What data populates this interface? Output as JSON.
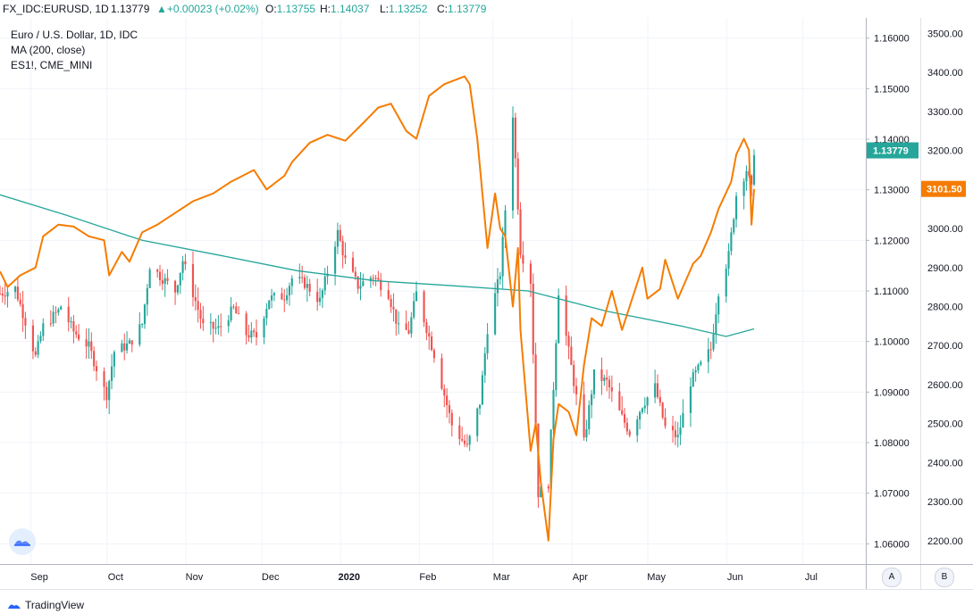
{
  "header": {
    "symbol": "FX_IDC:EURUSD, 1D",
    "last": "1.13779",
    "change": "+0.00023 (+0.02%)",
    "o_label": "O:",
    "o_value": "1.13755",
    "h_label": "H:",
    "h_value": "1.14037",
    "l_label": "L:",
    "l_value": "1.13252",
    "c_label": "C:",
    "c_value": "1.13779"
  },
  "legend": {
    "main": "Euro / U.S. Dollar, 1D, IDC",
    "ma": "MA (200, close)",
    "overlay": "ES1!, CME_MINI"
  },
  "footer": {
    "brand": "TradingView"
  },
  "scale_buttons": {
    "a": "A",
    "b": "B"
  },
  "colors": {
    "up": "#26a69a",
    "down": "#ef5350",
    "ma": "#26a69a",
    "es": "#f57c00",
    "grid": "#f0f3fa",
    "axis_text": "#131722"
  },
  "chart_data": {
    "type": "candlestick",
    "title": "Euro / U.S. Dollar, 1D, IDC",
    "x_tick_labels": [
      "Sep",
      "Oct",
      "Nov",
      "Dec",
      "2020",
      "Feb",
      "Mar",
      "Apr",
      "May",
      "Jun",
      "Jul"
    ],
    "x_range": [
      "2019-08-20",
      "2020-07-26"
    ],
    "right_axis_eurusd": {
      "range": [
        1.056,
        1.164
      ],
      "ticks": [
        "1.16000",
        "1.15000",
        "1.14000",
        "1.13000",
        "1.12000",
        "1.11000",
        "1.10000",
        "1.09000",
        "1.08000",
        "1.07000",
        "1.06000"
      ],
      "last_label": "1.13779"
    },
    "right_axis_es": {
      "range": [
        2140,
        3540
      ],
      "ticks": [
        "3500.00",
        "3400.00",
        "3300.00",
        "3200.00",
        "3100.00",
        "3000.00",
        "2900.00",
        "2800.00",
        "2700.00",
        "2600.00",
        "2500.00",
        "2400.00",
        "2300.00",
        "2200.00"
      ],
      "last_label": "3101.50"
    },
    "grid": true,
    "series": [
      {
        "name": "Euro / U.S. Dollar, 1D, IDC",
        "kind": "candlestick",
        "close_path": [
          [
            "2019-08-20",
            1.1095
          ],
          [
            "2019-08-26",
            1.1105
          ],
          [
            "2019-08-30",
            1.104
          ],
          [
            "2019-09-03",
            1.097
          ],
          [
            "2019-09-06",
            1.103
          ],
          [
            "2019-09-12",
            1.106
          ],
          [
            "2019-09-13",
            1.107
          ],
          [
            "2019-09-18",
            1.102
          ],
          [
            "2019-09-24",
            1.099
          ],
          [
            "2019-09-30",
            1.0905
          ],
          [
            "2019-10-01",
            1.0895
          ],
          [
            "2019-10-04",
            1.098
          ],
          [
            "2019-10-10",
            1.0995
          ],
          [
            "2019-10-15",
            1.1035
          ],
          [
            "2019-10-18",
            1.115
          ],
          [
            "2019-10-22",
            1.113
          ],
          [
            "2019-10-28",
            1.11
          ],
          [
            "2019-10-31",
            1.116
          ],
          [
            "2019-11-05",
            1.108
          ],
          [
            "2019-11-08",
            1.103
          ],
          [
            "2019-11-14",
            1.1025
          ],
          [
            "2019-11-20",
            1.1065
          ],
          [
            "2019-11-25",
            1.1015
          ],
          [
            "2019-11-29",
            1.101
          ],
          [
            "2019-12-04",
            1.1085
          ],
          [
            "2019-12-10",
            1.109
          ],
          [
            "2019-12-13",
            1.1125
          ],
          [
            "2019-12-18",
            1.1115
          ],
          [
            "2019-12-24",
            1.108
          ],
          [
            "2019-12-31",
            1.1215
          ],
          [
            "2020-01-03",
            1.116
          ],
          [
            "2020-01-08",
            1.111
          ],
          [
            "2020-01-14",
            1.113
          ],
          [
            "2020-01-20",
            1.1095
          ],
          [
            "2020-01-24",
            1.1025
          ],
          [
            "2020-01-28",
            1.102
          ],
          [
            "2020-01-31",
            1.1095
          ],
          [
            "2020-02-07",
            1.0975
          ],
          [
            "2020-02-14",
            1.0835
          ],
          [
            "2020-02-20",
            1.079
          ],
          [
            "2020-02-25",
            1.088
          ],
          [
            "2020-02-28",
            1.1025
          ],
          [
            "2020-03-04",
            1.1135
          ],
          [
            "2020-03-09",
            1.145
          ],
          [
            "2020-03-12",
            1.118
          ],
          [
            "2020-03-16",
            1.112
          ],
          [
            "2020-03-19",
            1.07
          ],
          [
            "2020-03-23",
            1.072
          ],
          [
            "2020-03-27",
            1.11
          ],
          [
            "2020-04-01",
            1.095
          ],
          [
            "2020-04-06",
            1.08
          ],
          [
            "2020-04-10",
            1.0935
          ],
          [
            "2020-04-15",
            1.092
          ],
          [
            "2020-04-20",
            1.086
          ],
          [
            "2020-04-24",
            1.082
          ],
          [
            "2020-04-29",
            1.0875
          ],
          [
            "2020-05-04",
            1.091
          ],
          [
            "2020-05-08",
            1.083
          ],
          [
            "2020-05-13",
            1.081
          ],
          [
            "2020-05-18",
            1.092
          ],
          [
            "2020-05-21",
            1.0945
          ],
          [
            "2020-05-26",
            1.0985
          ],
          [
            "2020-05-29",
            1.11
          ],
          [
            "2020-06-02",
            1.117
          ],
          [
            "2020-06-05",
            1.129
          ],
          [
            "2020-06-09",
            1.134
          ],
          [
            "2020-06-11",
            1.13
          ],
          [
            "2020-06-12",
            1.1378
          ]
        ]
      },
      {
        "name": "MA (200, close)",
        "kind": "line",
        "points": [
          [
            "2019-08-20",
            1.129
          ],
          [
            "2019-09-15",
            1.125
          ],
          [
            "2019-10-15",
            1.12
          ],
          [
            "2019-11-15",
            1.117
          ],
          [
            "2019-12-15",
            1.114
          ],
          [
            "2020-01-15",
            1.112
          ],
          [
            "2020-02-15",
            1.111
          ],
          [
            "2020-03-15",
            1.11
          ],
          [
            "2020-04-15",
            1.106
          ],
          [
            "2020-05-15",
            1.103
          ],
          [
            "2020-06-01",
            1.101
          ],
          [
            "2020-06-12",
            1.1025
          ]
        ]
      },
      {
        "name": "ES1!, CME_MINI",
        "kind": "line",
        "points": [
          [
            "2019-08-20",
            2890
          ],
          [
            "2019-08-23",
            2850
          ],
          [
            "2019-08-28",
            2880
          ],
          [
            "2019-09-03",
            2900
          ],
          [
            "2019-09-06",
            2980
          ],
          [
            "2019-09-12",
            3010
          ],
          [
            "2019-09-18",
            3005
          ],
          [
            "2019-09-24",
            2980
          ],
          [
            "2019-09-30",
            2970
          ],
          [
            "2019-10-02",
            2880
          ],
          [
            "2019-10-07",
            2940
          ],
          [
            "2019-10-10",
            2915
          ],
          [
            "2019-10-15",
            2990
          ],
          [
            "2019-10-21",
            3010
          ],
          [
            "2019-10-28",
            3040
          ],
          [
            "2019-11-04",
            3070
          ],
          [
            "2019-11-12",
            3090
          ],
          [
            "2019-11-19",
            3120
          ],
          [
            "2019-11-28",
            3150
          ],
          [
            "2019-12-03",
            3100
          ],
          [
            "2019-12-10",
            3135
          ],
          [
            "2019-12-13",
            3170
          ],
          [
            "2019-12-20",
            3220
          ],
          [
            "2019-12-27",
            3240
          ],
          [
            "2020-01-03",
            3225
          ],
          [
            "2020-01-10",
            3270
          ],
          [
            "2020-01-16",
            3310
          ],
          [
            "2020-01-21",
            3320
          ],
          [
            "2020-01-27",
            3250
          ],
          [
            "2020-01-31",
            3230
          ],
          [
            "2020-02-05",
            3340
          ],
          [
            "2020-02-11",
            3370
          ],
          [
            "2020-02-19",
            3390
          ],
          [
            "2020-02-21",
            3370
          ],
          [
            "2020-02-24",
            3230
          ],
          [
            "2020-02-28",
            2950
          ],
          [
            "2020-03-02",
            3090
          ],
          [
            "2020-03-04",
            3000
          ],
          [
            "2020-03-06",
            2980
          ],
          [
            "2020-03-09",
            2800
          ],
          [
            "2020-03-11",
            2950
          ],
          [
            "2020-03-12",
            2740
          ],
          [
            "2020-03-16",
            2430
          ],
          [
            "2020-03-18",
            2500
          ],
          [
            "2020-03-20",
            2350
          ],
          [
            "2020-03-23",
            2200
          ],
          [
            "2020-03-25",
            2460
          ],
          [
            "2020-03-27",
            2550
          ],
          [
            "2020-03-31",
            2530
          ],
          [
            "2020-04-03",
            2470
          ],
          [
            "2020-04-06",
            2650
          ],
          [
            "2020-04-09",
            2770
          ],
          [
            "2020-04-13",
            2750
          ],
          [
            "2020-04-17",
            2840
          ],
          [
            "2020-04-21",
            2740
          ],
          [
            "2020-04-24",
            2800
          ],
          [
            "2020-04-29",
            2900
          ],
          [
            "2020-05-01",
            2820
          ],
          [
            "2020-05-06",
            2845
          ],
          [
            "2020-05-08",
            2920
          ],
          [
            "2020-05-13",
            2820
          ],
          [
            "2020-05-15",
            2850
          ],
          [
            "2020-05-19",
            2910
          ],
          [
            "2020-05-22",
            2930
          ],
          [
            "2020-05-26",
            2990
          ],
          [
            "2020-05-29",
            3050
          ],
          [
            "2020-06-03",
            3120
          ],
          [
            "2020-06-05",
            3190
          ],
          [
            "2020-06-08",
            3230
          ],
          [
            "2020-06-10",
            3200
          ],
          [
            "2020-06-11",
            3010
          ],
          [
            "2020-06-12",
            3101.5
          ]
        ]
      }
    ]
  }
}
